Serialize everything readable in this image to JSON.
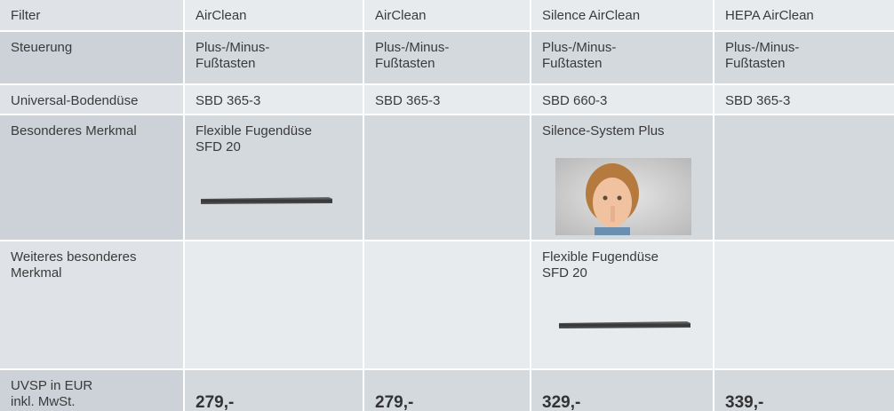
{
  "table": {
    "rows": [
      [
        "Filter",
        "AirClean",
        "AirClean",
        "Silence AirClean",
        "HEPA AirClean"
      ],
      [
        "Steuerung",
        "Plus-/Minus-\nFußtasten",
        "Plus-/Minus-\nFußtasten",
        "Plus-/Minus-\nFußtasten",
        "Plus-/Minus-\nFußtasten"
      ],
      [
        "Universal-Bodendüse",
        "SBD 365-3",
        "SBD 365-3",
        "SBD 660-3",
        "SBD 365-3"
      ],
      [
        "Besonderes Merkmal",
        "Flexible Fugendüse\nSFD 20",
        null,
        "Silence-System Plus",
        null
      ],
      [
        "Weiteres besonderes\nMerkmal",
        null,
        null,
        "Flexible Fugendüse\nSFD 20",
        null
      ],
      [
        "UVSP in EUR\ninkl. MwSt.",
        "279,-",
        "279,-",
        "329,-",
        "339,-"
      ]
    ]
  }
}
